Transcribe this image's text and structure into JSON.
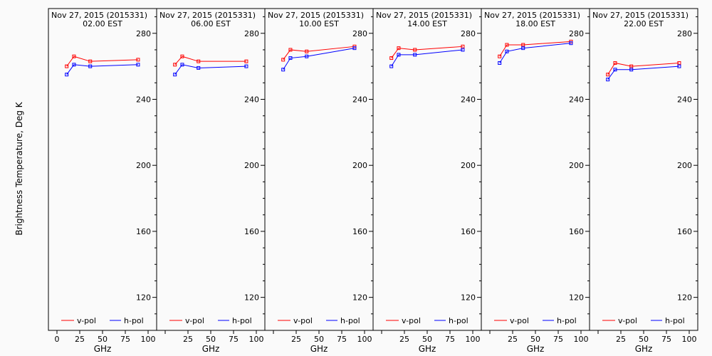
{
  "ylabel": "Brightness Temperature, Deg K",
  "xlabel": "GHz",
  "colors": {
    "vpol": "#ff0000",
    "hpol": "#0000ff",
    "frame": "#000000"
  },
  "legend": {
    "vpol": "v-pol",
    "hpol": "h-pol"
  },
  "chart_data": [
    {
      "type": "line",
      "title": "Nov 27, 2015 (2015331)",
      "subtitle": "02.00 EST",
      "x": [
        10.7,
        18.7,
        36.5,
        89.0
      ],
      "xlim": [
        0,
        100
      ],
      "xticks": [
        "0",
        "25",
        "50",
        "75",
        "100"
      ],
      "ylim": [
        100,
        295
      ],
      "yticks": [
        "120",
        "160",
        "200",
        "240",
        "280"
      ],
      "series": [
        {
          "name": "v-pol",
          "values": [
            260,
            266,
            263,
            264
          ]
        },
        {
          "name": "h-pol",
          "values": [
            255,
            261,
            260,
            261
          ]
        }
      ]
    },
    {
      "type": "line",
      "title": "Nov 27, 2015 (2015331)",
      "subtitle": "06.00 EST",
      "x": [
        10.7,
        18.7,
        36.5,
        89.0
      ],
      "xlim": [
        0,
        100
      ],
      "xticks": [
        "",
        "25",
        "50",
        "75",
        "100"
      ],
      "ylim": [
        100,
        295
      ],
      "yticks": [
        "120",
        "160",
        "200",
        "240",
        "280"
      ],
      "series": [
        {
          "name": "v-pol",
          "values": [
            261,
            266,
            263,
            263
          ]
        },
        {
          "name": "h-pol",
          "values": [
            255,
            261,
            259,
            260
          ]
        }
      ]
    },
    {
      "type": "line",
      "title": "Nov 27, 2015 (2015331)",
      "subtitle": "10.00 EST",
      "x": [
        10.7,
        18.7,
        36.5,
        89.0
      ],
      "xlim": [
        0,
        100
      ],
      "xticks": [
        "",
        "25",
        "50",
        "75",
        "100"
      ],
      "ylim": [
        100,
        295
      ],
      "yticks": [
        "120",
        "160",
        "200",
        "240",
        "280"
      ],
      "series": [
        {
          "name": "v-pol",
          "values": [
            264,
            270,
            269,
            272
          ]
        },
        {
          "name": "h-pol",
          "values": [
            258,
            265,
            266,
            271
          ]
        }
      ]
    },
    {
      "type": "line",
      "title": "Nov 27, 2015 (2015331)",
      "subtitle": "14.00 EST",
      "x": [
        10.7,
        18.7,
        36.5,
        89.0
      ],
      "xlim": [
        0,
        100
      ],
      "xticks": [
        "",
        "25",
        "50",
        "75",
        "100"
      ],
      "ylim": [
        100,
        295
      ],
      "yticks": [
        "120",
        "160",
        "200",
        "240",
        "280"
      ],
      "series": [
        {
          "name": "v-pol",
          "values": [
            265,
            271,
            270,
            272
          ]
        },
        {
          "name": "h-pol",
          "values": [
            260,
            267,
            267,
            270
          ]
        }
      ]
    },
    {
      "type": "line",
      "title": "Nov 27, 2015 (2015331)",
      "subtitle": "18.00 EST",
      "x": [
        10.7,
        18.7,
        36.5,
        89.0
      ],
      "xlim": [
        0,
        100
      ],
      "xticks": [
        "",
        "25",
        "50",
        "75",
        "100"
      ],
      "ylim": [
        100,
        295
      ],
      "yticks": [
        "120",
        "160",
        "200",
        "240",
        "280"
      ],
      "series": [
        {
          "name": "v-pol",
          "values": [
            266,
            273,
            273,
            275
          ]
        },
        {
          "name": "h-pol",
          "values": [
            262,
            269,
            271,
            274
          ]
        }
      ]
    },
    {
      "type": "line",
      "title": "Nov 27, 2015 (2015331)",
      "subtitle": "22.00 EST",
      "x": [
        10.7,
        18.7,
        36.5,
        89.0
      ],
      "xlim": [
        0,
        100
      ],
      "xticks": [
        "",
        "25",
        "50",
        "75",
        "100"
      ],
      "ylim": [
        100,
        295
      ],
      "yticks": [
        "120",
        "160",
        "200",
        "240",
        "280"
      ],
      "series": [
        {
          "name": "v-pol",
          "values": [
            255,
            262,
            260,
            262
          ]
        },
        {
          "name": "h-pol",
          "values": [
            252,
            258,
            258,
            260
          ]
        }
      ]
    }
  ]
}
